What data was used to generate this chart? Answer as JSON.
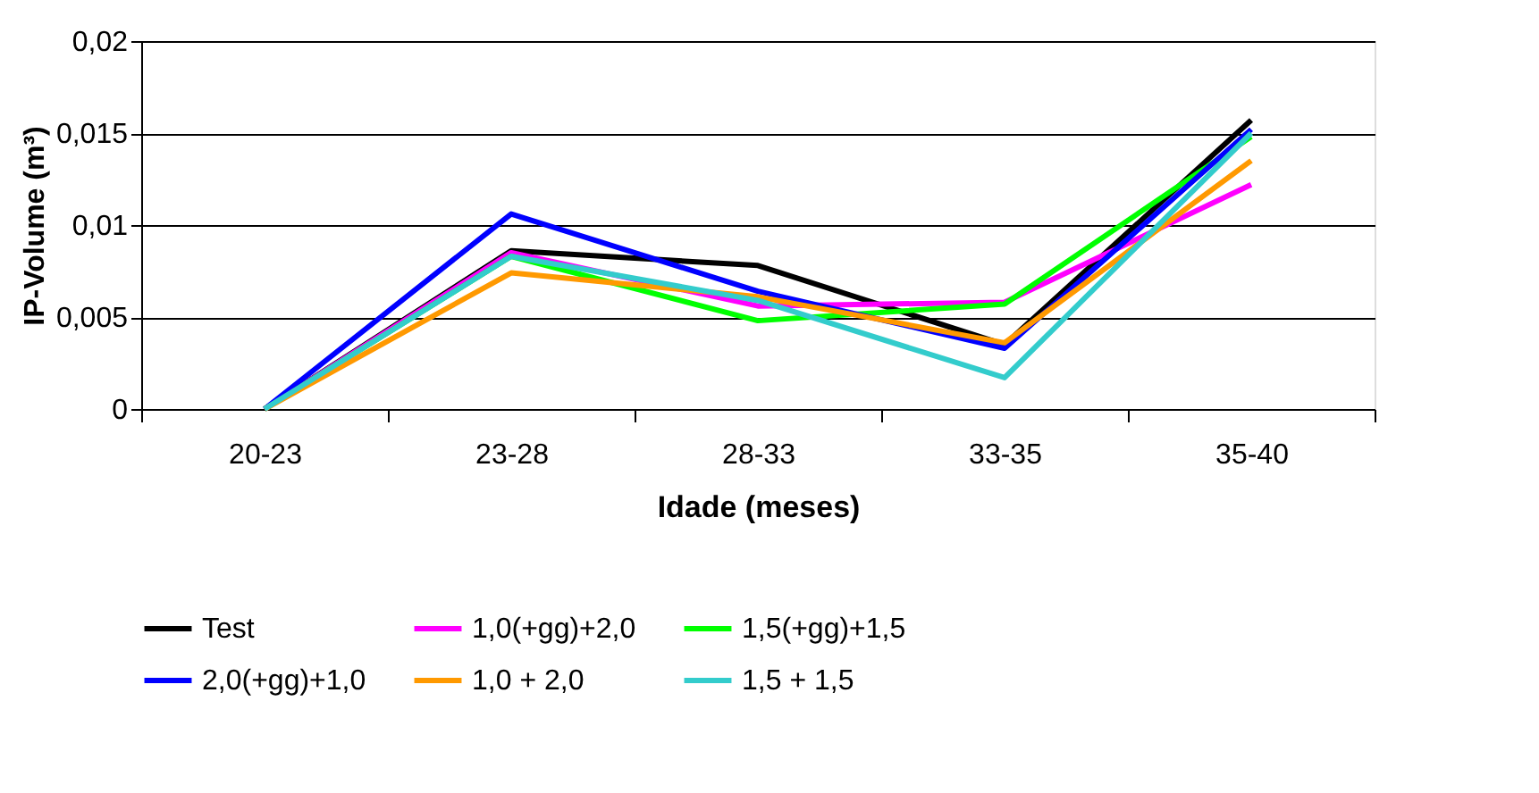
{
  "chart_data": {
    "type": "line",
    "xlabel": "Idade (meses)",
    "ylabel": "IP-Volume (m³)",
    "categories": [
      "20-23",
      "23-28",
      "28-33",
      "33-35",
      "35-40"
    ],
    "ylim": [
      0,
      0.02
    ],
    "yticks": [
      {
        "value": 0,
        "label": "0"
      },
      {
        "value": 0.005,
        "label": "0,005"
      },
      {
        "value": 0.01,
        "label": "0,01"
      },
      {
        "value": 0.015,
        "label": "0,015"
      },
      {
        "value": 0.02,
        "label": "0,02"
      }
    ],
    "grid": "y",
    "legend": "bottom",
    "marker": "none",
    "line_style": "solid",
    "series": [
      {
        "name": "Test",
        "color": "#000000",
        "values": [
          0,
          0.0086,
          0.0078,
          0.0035,
          0.0157
        ]
      },
      {
        "name": "1,0(+gg)+2,0",
        "color": "#ff00ff",
        "values": [
          0,
          0.0085,
          0.0056,
          0.0058,
          0.0122
        ]
      },
      {
        "name": "1,5(+gg)+1,5",
        "color": "#00ff00",
        "values": [
          0,
          0.0083,
          0.0048,
          0.0057,
          0.0148
        ]
      },
      {
        "name": "2,0(+gg)+1,0",
        "color": "#0000ff",
        "values": [
          0,
          0.0106,
          0.0064,
          0.0033,
          0.0152
        ]
      },
      {
        "name": "1,0 + 2,0",
        "color": "#ff9900",
        "values": [
          0,
          0.0074,
          0.0061,
          0.0036,
          0.0135
        ]
      },
      {
        "name": "1,5 + 1,5",
        "color": "#33cccc",
        "values": [
          0,
          0.0083,
          0.0059,
          0.0017,
          0.015
        ]
      }
    ]
  }
}
